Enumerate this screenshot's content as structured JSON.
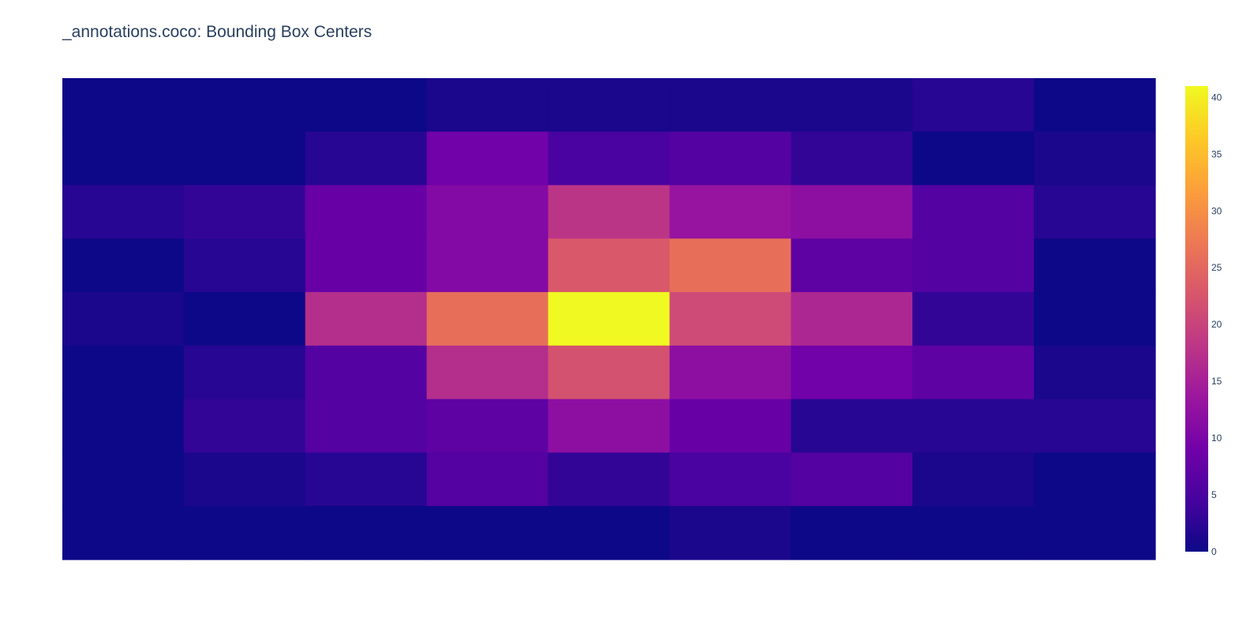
{
  "chart_data": {
    "type": "heatmap",
    "title": "_annotations.coco: Bounding Box Centers",
    "xlabel": "",
    "ylabel": "",
    "colorscale": "Plasma",
    "colorscale_stops": [
      "#0d0887",
      "#46039f",
      "#7201a8",
      "#9c179e",
      "#bd3786",
      "#d8576b",
      "#ed7953",
      "#fb9f3a",
      "#fdca26",
      "#f0f921"
    ],
    "zmin": 0,
    "zmax": 41,
    "colorbar_ticks": [
      "0",
      "5",
      "10",
      "15",
      "20",
      "25",
      "30",
      "35",
      "40"
    ],
    "rows": 9,
    "cols": 9,
    "z": [
      [
        0,
        0,
        0,
        1,
        1,
        1,
        1,
        2,
        0
      ],
      [
        0,
        0,
        2,
        9,
        5,
        6,
        3,
        0,
        1
      ],
      [
        2,
        3,
        8,
        11,
        18,
        13,
        12,
        6,
        2
      ],
      [
        0,
        2,
        8,
        11,
        23,
        26,
        7,
        6,
        0
      ],
      [
        1,
        0,
        17,
        26,
        41,
        21,
        16,
        3,
        0
      ],
      [
        0,
        2,
        6,
        17,
        22,
        12,
        9,
        7,
        1
      ],
      [
        0,
        3,
        6,
        7,
        12,
        8,
        2,
        2,
        2
      ],
      [
        0,
        1,
        2,
        6,
        3,
        5,
        6,
        1,
        0
      ],
      [
        0,
        0,
        0,
        0,
        0,
        1,
        0,
        0,
        0
      ]
    ]
  }
}
